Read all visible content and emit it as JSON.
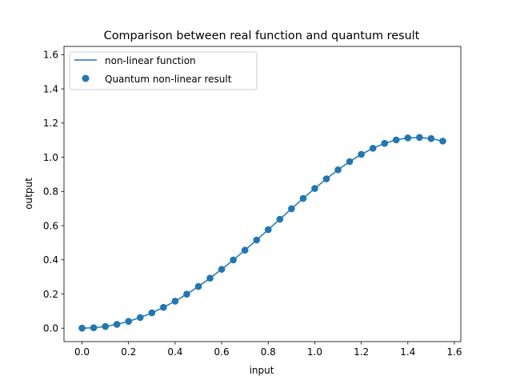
{
  "chart_data": {
    "type": "line",
    "title": "Comparison between real function and quantum result",
    "xlabel": "input",
    "ylabel": "output",
    "xlim": [
      -0.0775,
      1.6275
    ],
    "ylim": [
      -0.0785,
      1.6485
    ],
    "xticks": [
      0.0,
      0.2,
      0.4,
      0.6,
      0.8,
      1.0,
      1.2,
      1.4,
      1.6
    ],
    "xtick_labels": [
      "0.0",
      "0.2",
      "0.4",
      "0.6",
      "0.8",
      "1.0",
      "1.2",
      "1.4",
      "1.6"
    ],
    "yticks": [
      0.0,
      0.2,
      0.4,
      0.6,
      0.8,
      1.0,
      1.2,
      1.4,
      1.6
    ],
    "ytick_labels": [
      "0.0",
      "0.2",
      "0.4",
      "0.6",
      "0.8",
      "1.0",
      "1.2",
      "1.4",
      "1.6"
    ],
    "grid": false,
    "legend_position": "top-left",
    "color": "#1f77b4",
    "x": [
      0.0,
      0.05,
      0.1,
      0.15,
      0.2,
      0.25,
      0.3,
      0.35,
      0.4,
      0.45,
      0.5,
      0.55,
      0.6,
      0.65,
      0.7,
      0.75,
      0.8,
      0.85,
      0.9,
      0.95,
      1.0,
      1.05,
      1.1,
      1.15,
      1.2,
      1.25,
      1.3,
      1.35,
      1.4,
      1.45,
      1.5,
      1.55
    ],
    "series": [
      {
        "name": "non-linear function",
        "kind": "line",
        "values": [
          0.0,
          0.0025,
          0.01,
          0.0225,
          0.04,
          0.0624,
          0.0897,
          0.1217,
          0.1583,
          0.1991,
          0.244,
          0.2926,
          0.3445,
          0.3993,
          0.4565,
          0.5158,
          0.5764,
          0.6375,
          0.6988,
          0.759,
          0.8176,
          0.8738,
          0.9265,
          0.9745,
          1.017,
          1.0528,
          1.0813,
          1.1014,
          1.1131,
          1.1157,
          1.1093,
          1.0945
        ]
      },
      {
        "name": "Quantum non-linear result",
        "kind": "scatter",
        "values": [
          0.0,
          0.0025,
          0.01,
          0.0225,
          0.04,
          0.0624,
          0.0897,
          0.1217,
          0.1583,
          0.1991,
          0.244,
          0.2926,
          0.3445,
          0.3993,
          0.4565,
          0.5158,
          0.5764,
          0.6375,
          0.6988,
          0.759,
          0.8176,
          0.8738,
          0.9265,
          0.9745,
          1.017,
          1.0528,
          1.0813,
          1.1014,
          1.1131,
          1.1157,
          1.1093,
          1.0945
        ]
      }
    ]
  }
}
